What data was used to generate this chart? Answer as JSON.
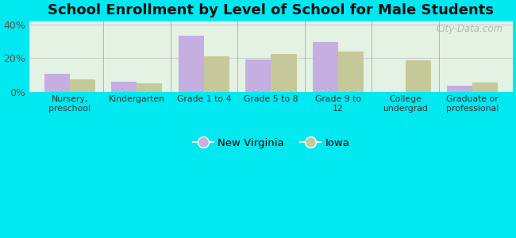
{
  "title": "School Enrollment by Level of School for Male Students",
  "categories": [
    "Nursery,\npreschool",
    "Kindergarten",
    "Grade 1 to 4",
    "Grade 5 to 8",
    "Grade 9 to\n12",
    "College\nundergrad",
    "Graduate or\nprofessional"
  ],
  "new_virginia": [
    10.5,
    6.0,
    33.5,
    19.0,
    29.5,
    0.0,
    3.5
  ],
  "iowa": [
    7.5,
    5.0,
    21.0,
    22.5,
    24.0,
    18.5,
    5.5
  ],
  "nv_color": "#c5aee0",
  "iowa_color": "#c5c99a",
  "background_outer": "#00e8f0",
  "ylim": [
    0,
    42
  ],
  "yticks": [
    0,
    20,
    40
  ],
  "ytick_labels": [
    "0%",
    "20%",
    "40%"
  ],
  "bar_width": 0.38,
  "legend_label_nv": "New Virginia",
  "legend_label_iowa": "Iowa",
  "title_fontsize": 13,
  "watermark": "City-Data.com"
}
